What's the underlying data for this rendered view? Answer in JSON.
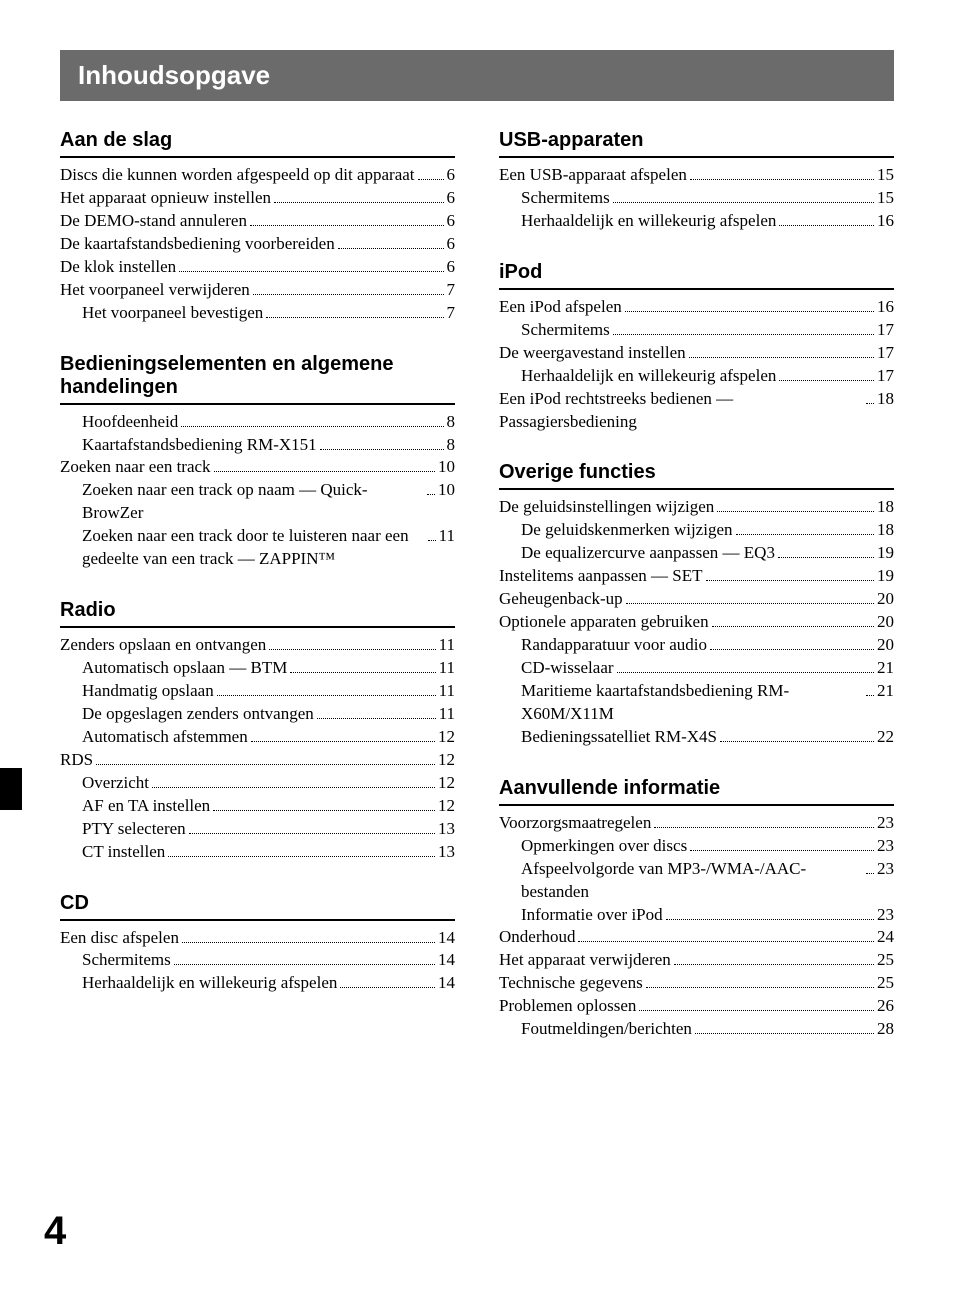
{
  "colors": {
    "title_bar_bg": "#6b6b6b",
    "title_bar_text": "#ffffff",
    "page_bg": "#ffffff",
    "text": "#000000",
    "rule": "#000000",
    "side_tab": "#000000"
  },
  "typography": {
    "title_font": "Arial",
    "title_size_pt": 20,
    "section_font": "Arial",
    "section_size_pt": 15,
    "body_font": "Times New Roman",
    "body_size_pt": 12
  },
  "title": "Inhoudsopgave",
  "page_number": "4",
  "left_column": [
    {
      "heading": "Aan de slag",
      "entries": [
        {
          "label": "Discs die kunnen worden afgespeeld op dit apparaat",
          "page": "6",
          "indent": false
        },
        {
          "label": "Het apparaat opnieuw instellen",
          "page": "6",
          "indent": false
        },
        {
          "label": "De DEMO-stand annuleren",
          "page": "6",
          "indent": false
        },
        {
          "label": "De kaartafstandsbediening voorbereiden",
          "page": "6",
          "indent": false
        },
        {
          "label": "De klok instellen",
          "page": "6",
          "indent": false
        },
        {
          "label": "Het voorpaneel verwijderen",
          "page": "7",
          "indent": false
        },
        {
          "label": "Het voorpaneel bevestigen",
          "page": "7",
          "indent": true
        }
      ]
    },
    {
      "heading": "Bedieningselementen en algemene handelingen",
      "entries": [
        {
          "label": "Hoofdeenheid",
          "page": "8",
          "indent": true
        },
        {
          "label": "Kaartafstandsbediening RM-X151",
          "page": "8",
          "indent": true
        },
        {
          "label": "Zoeken naar een track",
          "page": "10",
          "indent": false
        },
        {
          "label": "Zoeken naar een track op naam — Quick-BrowZer",
          "page": "10",
          "indent": true
        },
        {
          "label": "Zoeken naar een track door te luisteren naar een gedeelte van een track — ZAPPIN™",
          "page": "11",
          "indent": true
        }
      ]
    },
    {
      "heading": "Radio",
      "entries": [
        {
          "label": "Zenders opslaan en ontvangen",
          "page": "11",
          "indent": false
        },
        {
          "label": "Automatisch opslaan — BTM",
          "page": "11",
          "indent": true
        },
        {
          "label": "Handmatig opslaan",
          "page": "11",
          "indent": true
        },
        {
          "label": "De opgeslagen zenders ontvangen",
          "page": "11",
          "indent": true
        },
        {
          "label": "Automatisch afstemmen",
          "page": "12",
          "indent": true
        },
        {
          "label": "RDS",
          "page": "12",
          "indent": false
        },
        {
          "label": "Overzicht",
          "page": "12",
          "indent": true
        },
        {
          "label": "AF en TA instellen",
          "page": "12",
          "indent": true
        },
        {
          "label": "PTY selecteren",
          "page": "13",
          "indent": true
        },
        {
          "label": "CT instellen",
          "page": "13",
          "indent": true
        }
      ]
    },
    {
      "heading": "CD",
      "entries": [
        {
          "label": "Een disc afspelen",
          "page": "14",
          "indent": false
        },
        {
          "label": "Schermitems",
          "page": "14",
          "indent": true
        },
        {
          "label": "Herhaaldelijk en willekeurig afspelen",
          "page": "14",
          "indent": true
        }
      ]
    }
  ],
  "right_column": [
    {
      "heading": "USB-apparaten",
      "entries": [
        {
          "label": "Een USB-apparaat afspelen",
          "page": "15",
          "indent": false
        },
        {
          "label": "Schermitems",
          "page": "15",
          "indent": true
        },
        {
          "label": "Herhaaldelijk en willekeurig afspelen",
          "page": "16",
          "indent": true
        }
      ]
    },
    {
      "heading": "iPod",
      "entries": [
        {
          "label": "Een iPod afspelen",
          "page": "16",
          "indent": false
        },
        {
          "label": "Schermitems",
          "page": "17",
          "indent": true
        },
        {
          "label": "De weergavestand instellen",
          "page": "17",
          "indent": false
        },
        {
          "label": "Herhaaldelijk en willekeurig afspelen",
          "page": "17",
          "indent": true
        },
        {
          "label": "Een iPod rechtstreeks bedienen — Passagiersbediening",
          "page": "18",
          "indent": false
        }
      ]
    },
    {
      "heading": "Overige functies",
      "entries": [
        {
          "label": "De geluidsinstellingen wijzigen",
          "page": "18",
          "indent": false
        },
        {
          "label": "De geluidskenmerken wijzigen",
          "page": "18",
          "indent": true
        },
        {
          "label": "De equalizercurve aanpassen — EQ3",
          "page": "19",
          "indent": true
        },
        {
          "label": "Instelitems aanpassen — SET",
          "page": "19",
          "indent": false
        },
        {
          "label": "Geheugenback-up",
          "page": "20",
          "indent": false
        },
        {
          "label": "Optionele apparaten gebruiken",
          "page": "20",
          "indent": false
        },
        {
          "label": "Randapparatuur voor audio",
          "page": "20",
          "indent": true
        },
        {
          "label": "CD-wisselaar",
          "page": "21",
          "indent": true
        },
        {
          "label": "Maritieme kaartafstandsbediening RM-X60M/X11M",
          "page": "21",
          "indent": true
        },
        {
          "label": "Bedieningssatelliet RM-X4S",
          "page": "22",
          "indent": true
        }
      ]
    },
    {
      "heading": "Aanvullende informatie",
      "entries": [
        {
          "label": "Voorzorgsmaatregelen",
          "page": "23",
          "indent": false
        },
        {
          "label": "Opmerkingen over discs",
          "page": "23",
          "indent": true
        },
        {
          "label": "Afspeelvolgorde van MP3-/WMA-/AAC-bestanden",
          "page": "23",
          "indent": true
        },
        {
          "label": "Informatie over iPod",
          "page": "23",
          "indent": true
        },
        {
          "label": "Onderhoud",
          "page": "24",
          "indent": false
        },
        {
          "label": "Het apparaat verwijderen",
          "page": "25",
          "indent": false
        },
        {
          "label": "Technische gegevens",
          "page": "25",
          "indent": false
        },
        {
          "label": "Problemen oplossen",
          "page": "26",
          "indent": false
        },
        {
          "label": "Foutmeldingen/berichten",
          "page": "28",
          "indent": true
        }
      ]
    }
  ]
}
